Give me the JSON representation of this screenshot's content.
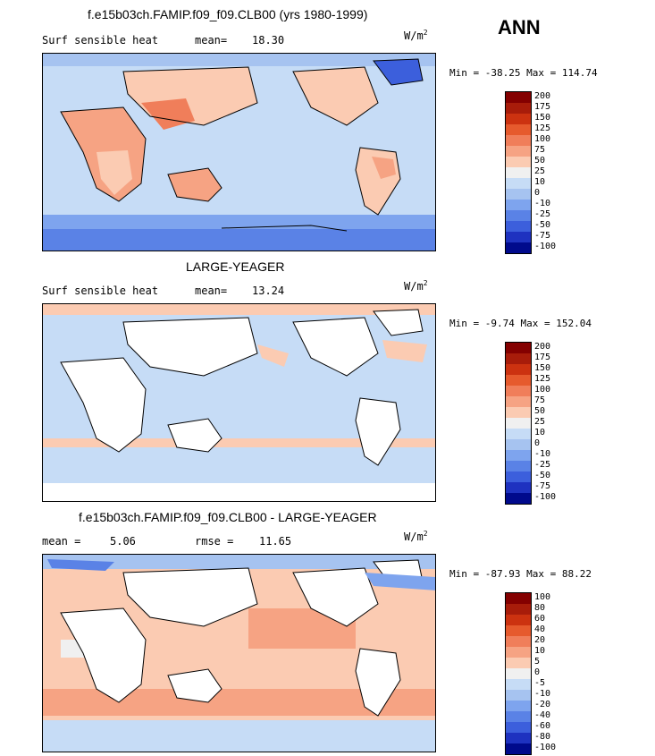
{
  "season": "ANN",
  "units_base": "W/m",
  "units_exp": "2",
  "panels": [
    {
      "title": "f.e15b03ch.FAMIP.f09_f09.CLB00 (yrs 1980-1999)",
      "left_label": "Surf sensible heat",
      "stat_label": "mean=",
      "stat_value": "18.30",
      "minmax": "Min = -38.25 Max = 114.74",
      "levels": [
        "200",
        "175",
        "150",
        "125",
        "100",
        "75",
        "50",
        "25",
        "10",
        "0",
        "-10",
        "-25",
        "-50",
        "-75",
        "-100"
      ]
    },
    {
      "title": "LARGE-YEAGER",
      "left_label": "Surf sensible heat",
      "stat_label": "mean=",
      "stat_value": "13.24",
      "minmax": "Min = -9.74 Max = 152.04",
      "levels": [
        "200",
        "175",
        "150",
        "125",
        "100",
        "75",
        "50",
        "25",
        "10",
        "0",
        "-10",
        "-25",
        "-50",
        "-75",
        "-100"
      ]
    },
    {
      "title": "f.e15b03ch.FAMIP.f09_f09.CLB00 - LARGE-YEAGER",
      "left_label": "mean =",
      "left_value": "5.06",
      "stat_label": "rmse =",
      "stat_value": "11.65",
      "minmax": "Min = -87.93 Max = 88.22",
      "levels": [
        "100",
        "80",
        "60",
        "40",
        "20",
        "10",
        "5",
        "0",
        "-5",
        "-10",
        "-20",
        "-40",
        "-60",
        "-80",
        "-100"
      ]
    }
  ],
  "chart_data": {
    "type": "heatmap",
    "title": "ANN",
    "variable": "Surf sensible heat",
    "units": "W/m2",
    "maps": [
      {
        "name": "f.e15b03ch.FAMIP.f09_f09.CLB00 (yrs 1980-1999)",
        "mean": 18.3,
        "min": -38.25,
        "max": 114.74,
        "levels": [
          -100,
          -75,
          -50,
          -25,
          -10,
          0,
          10,
          25,
          50,
          75,
          100,
          125,
          150,
          175,
          200
        ]
      },
      {
        "name": "LARGE-YEAGER",
        "mean": 13.24,
        "min": -9.74,
        "max": 152.04,
        "levels": [
          -100,
          -75,
          -50,
          -25,
          -10,
          0,
          10,
          25,
          50,
          75,
          100,
          125,
          150,
          175,
          200
        ]
      },
      {
        "name": "f.e15b03ch.FAMIP.f09_f09.CLB00 - LARGE-YEAGER",
        "mean": 5.06,
        "rmse": 11.65,
        "min": -87.93,
        "max": 88.22,
        "levels": [
          -100,
          -80,
          -60,
          -40,
          -20,
          -10,
          -5,
          0,
          5,
          10,
          20,
          40,
          60,
          80,
          100
        ]
      }
    ]
  },
  "colors": {
    "palette": [
      "#840000",
      "#a81c0a",
      "#cc3210",
      "#e65a2d",
      "#f07e5a",
      "#f6a383",
      "#fbcbb2",
      "#f0f0f0",
      "#c6dcf6",
      "#a6c3f0",
      "#7ea4ee",
      "#5a82e6",
      "#3c5fdc",
      "#1e32c0",
      "#000a8c"
    ]
  }
}
